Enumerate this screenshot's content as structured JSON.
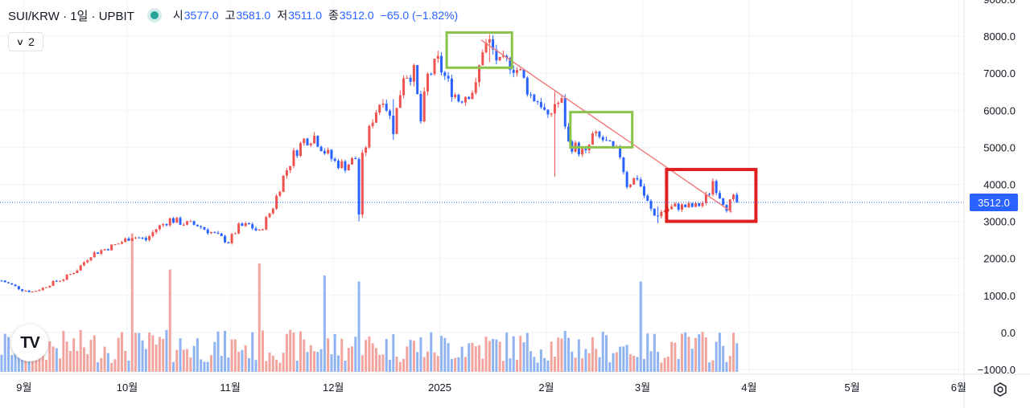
{
  "header": {
    "symbol_title": "SUI/KRW · 1일 · UPBIT",
    "ohlc": [
      {
        "key": "시",
        "value": "3577.0"
      },
      {
        "key": "고",
        "value": "3581.0"
      },
      {
        "key": "저",
        "value": "3511.0"
      },
      {
        "key": "종",
        "value": "3512.0"
      }
    ],
    "change": "−65.0 (−1.82%)",
    "collapse_count": "2"
  },
  "logo_text": "TV",
  "colors": {
    "up": "#ef5350",
    "down": "#2962ff",
    "up_volume": "#f2a59e",
    "down_volume": "#90b4f2",
    "trendline": "#f08080",
    "green_box": "#8bc34a",
    "red_box": "#e02020",
    "price_line": "#2962ff"
  },
  "chart_data": {
    "type": "candlestick",
    "y_axis": {
      "min": -1000,
      "max": 9000,
      "ticks": [
        "9000.0",
        "8000.0",
        "7000.0",
        "6000.0",
        "5000.0",
        "4000.0",
        "3000.0",
        "2000.0",
        "1000.0",
        "0.0",
        "−1000.0"
      ]
    },
    "x_axis": {
      "ticks": [
        "9월",
        "10월",
        "11월",
        "12월",
        "2025",
        "2월",
        "3월",
        "4월",
        "5월",
        "6월"
      ]
    },
    "last_price_label": "3512.0",
    "last_price": 3512,
    "price_series": [
      [
        0,
        1400
      ],
      [
        3,
        1280
      ],
      [
        6,
        1150
      ],
      [
        9,
        1100
      ],
      [
        12,
        1200
      ],
      [
        15,
        1350
      ],
      [
        18,
        1450
      ],
      [
        22,
        1700
      ],
      [
        26,
        2100
      ],
      [
        30,
        2250
      ],
      [
        34,
        2400
      ],
      [
        38,
        2600
      ],
      [
        42,
        2500
      ],
      [
        45,
        2800
      ],
      [
        49,
        3050
      ],
      [
        53,
        2950
      ],
      [
        57,
        2900
      ],
      [
        60,
        2750
      ],
      [
        63,
        2600
      ],
      [
        66,
        2450
      ],
      [
        69,
        2850
      ],
      [
        72,
        2900
      ],
      [
        75,
        2700
      ],
      [
        79,
        3400
      ],
      [
        82,
        4200
      ],
      [
        85,
        4800
      ],
      [
        88,
        5200
      ],
      [
        91,
        5300
      ],
      [
        94,
        4900
      ],
      [
        97,
        4600
      ],
      [
        100,
        4500
      ],
      [
        103,
        4700
      ],
      [
        104,
        3200
      ],
      [
        105,
        4700
      ],
      [
        108,
        5800
      ],
      [
        111,
        6400
      ],
      [
        114,
        5500
      ],
      [
        117,
        7000
      ],
      [
        120,
        7000
      ],
      [
        122,
        5700
      ],
      [
        124,
        6900
      ],
      [
        127,
        7300
      ],
      [
        130,
        6700
      ],
      [
        133,
        6300
      ],
      [
        136,
        6500
      ],
      [
        138,
        6600
      ],
      [
        140,
        7700
      ],
      [
        142,
        7800
      ],
      [
        145,
        7200
      ],
      [
        148,
        7300
      ],
      [
        151,
        7000
      ],
      [
        154,
        6400
      ],
      [
        157,
        6200
      ],
      [
        159,
        5700
      ],
      [
        161,
        6200
      ],
      [
        163,
        6200
      ],
      [
        165,
        5100
      ],
      [
        167,
        5000
      ],
      [
        170,
        4800
      ],
      [
        172,
        5300
      ],
      [
        175,
        5200
      ],
      [
        178,
        4900
      ],
      [
        180,
        4800
      ],
      [
        182,
        4000
      ],
      [
        185,
        4200
      ],
      [
        187,
        3700
      ],
      [
        189,
        3300
      ],
      [
        190,
        3150
      ],
      [
        193,
        3300
      ],
      [
        196,
        3400
      ],
      [
        199,
        3400
      ],
      [
        202,
        3400
      ],
      [
        204,
        3500
      ],
      [
        206,
        3800
      ],
      [
        207,
        4100
      ],
      [
        209,
        3700
      ],
      [
        211,
        3400
      ],
      [
        213,
        3600
      ],
      [
        214,
        3512
      ]
    ],
    "spikes": [
      {
        "day": 104,
        "low": 3000,
        "high": 4700
      },
      {
        "day": 114,
        "low": 5200,
        "high": 6300
      },
      {
        "day": 142,
        "low": 7300,
        "high": 7900
      },
      {
        "day": 161,
        "low": 4200,
        "high": 6500
      },
      {
        "day": 191,
        "low": 2950,
        "high": 3400
      }
    ],
    "volume_spikes": [
      {
        "day": 38,
        "value": 1500
      },
      {
        "day": 49,
        "value": 900
      },
      {
        "day": 75,
        "value": 1000
      },
      {
        "day": 94,
        "value": 800
      },
      {
        "day": 104,
        "value": 700
      },
      {
        "day": 186,
        "value": 700
      }
    ],
    "trendline": {
      "from": {
        "day": 140,
        "price": 7900
      },
      "to": {
        "day": 213,
        "price": 3250
      }
    },
    "highlight_boxes": [
      {
        "kind": "green",
        "day_from": 130,
        "day_to": 149,
        "price_from": 7150,
        "price_to": 8100
      },
      {
        "kind": "green",
        "day_from": 166,
        "day_to": 184,
        "price_from": 5000,
        "price_to": 5950
      },
      {
        "kind": "red",
        "day_from": 194,
        "day_to": 220,
        "price_from": 3000,
        "price_to": 4400
      }
    ]
  }
}
